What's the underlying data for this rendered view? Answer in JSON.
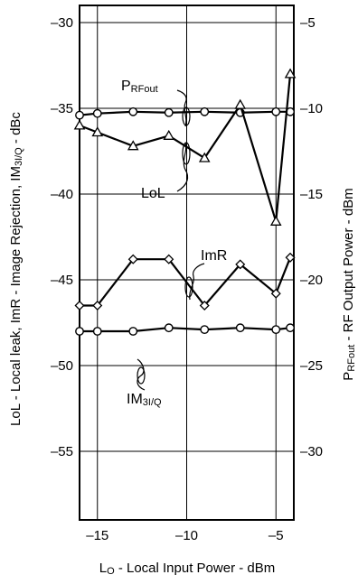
{
  "chart_data": {
    "type": "line",
    "x_axis": {
      "label_main": "L",
      "label_sub": "O",
      "label_rest": " - Local Input Power - dBm",
      "range": [
        -16,
        -4
      ],
      "ticks": [
        -15,
        -10,
        -5
      ],
      "tick_labels": [
        "–15",
        "–10",
        "–5"
      ]
    },
    "y_left": {
      "label_a": "LoL - Local leak, ImR - Image Rejection, IM",
      "label_sub": "3I/Q",
      "label_b": " - dBc",
      "range": [
        -59,
        -29
      ],
      "ticks": [
        -30,
        -35,
        -40,
        -45,
        -50,
        -55
      ],
      "tick_labels": [
        "–30",
        "–35",
        "–40",
        "–45",
        "–50",
        "–55"
      ]
    },
    "y_right": {
      "label_main": "P",
      "label_sub": "RFout",
      "label_rest": " - RF Output Power - dBm",
      "range": [
        -34,
        -4
      ],
      "ticks": [
        -5,
        -10,
        -15,
        -20,
        -25,
        -30
      ],
      "tick_labels": [
        "–5",
        "–10",
        "–15",
        "–20",
        "–25",
        "–30"
      ]
    },
    "grid": true,
    "series": [
      {
        "name": "P_RFout",
        "axis": "right",
        "marker": "circle",
        "x": [
          -16,
          -15,
          -13,
          -11,
          -9,
          -7,
          -5,
          -4.2
        ],
        "y": [
          -10.4,
          -10.3,
          -10.2,
          -10.25,
          -10.2,
          -10.25,
          -10.2,
          -10.2
        ]
      },
      {
        "name": "LoL",
        "axis": "left",
        "marker": "triangle",
        "x": [
          -16,
          -15,
          -13,
          -11,
          -9,
          -7,
          -5,
          -4.2
        ],
        "y": [
          -36.0,
          -36.4,
          -37.2,
          -36.6,
          -37.9,
          -34.8,
          -41.6,
          -33.0
        ]
      },
      {
        "name": "ImR",
        "axis": "left",
        "marker": "diamond",
        "x": [
          -16,
          -15,
          -13,
          -11,
          -9,
          -7,
          -5,
          -4.2
        ],
        "y": [
          -46.5,
          -46.5,
          -43.8,
          -43.8,
          -46.5,
          -44.1,
          -45.8,
          -43.7
        ]
      },
      {
        "name": "IM3I/Q",
        "axis": "left",
        "marker": "circle",
        "x": [
          -16,
          -15,
          -13,
          -11,
          -9,
          -7,
          -5,
          -4.2
        ],
        "y": [
          -48.0,
          -48.0,
          -48.0,
          -47.8,
          -47.9,
          -47.8,
          -47.9,
          -47.8
        ]
      }
    ],
    "annotations": {
      "prfout_main": "P",
      "prfout_sub": "RFout",
      "lol": "LoL",
      "imr": "ImR",
      "im3_main": "IM",
      "im3_sub": "3I/Q"
    }
  }
}
